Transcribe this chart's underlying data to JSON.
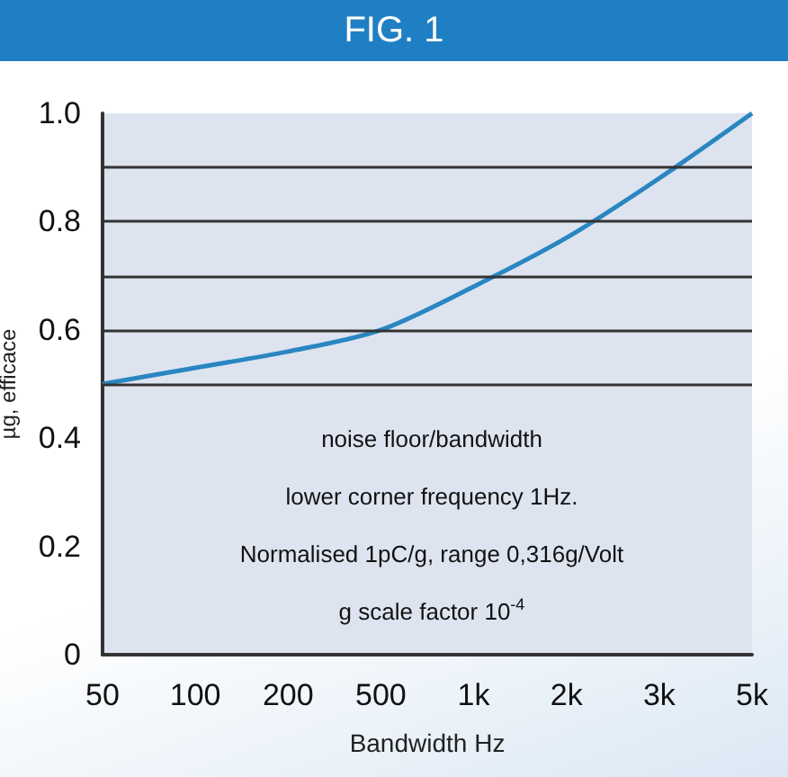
{
  "chart_data": {
    "type": "line",
    "title": "FIG. 1",
    "xlabel": "Bandwidth Hz",
    "ylabel": "µg, efficace",
    "categories": [
      "50",
      "100",
      "200",
      "500",
      "1k",
      "2k",
      "3k",
      "5k"
    ],
    "series": [
      {
        "color": "#2a86c0",
        "values": [
          0.5,
          0.53,
          0.56,
          0.6,
          0.68,
          0.77,
          0.88,
          1.0
        ]
      }
    ],
    "ylim": [
      0,
      1.0
    ],
    "yticks": [
      0,
      0.2,
      0.4,
      0.6,
      0.8,
      {
        "value": 1,
        "label": "1.0"
      }
    ],
    "grid": false,
    "marker": "none",
    "line_style": "solid",
    "ref_lines": [
      {
        "axis": "y",
        "value": 0.5,
        "color": "#333333"
      },
      {
        "axis": "y",
        "value": 0.6,
        "color": "#333333"
      },
      {
        "axis": "y",
        "value": 0.7,
        "color": "#333333"
      },
      {
        "axis": "y",
        "value": 0.8,
        "color": "#333333"
      },
      {
        "axis": "y",
        "value": 0.9,
        "color": "#333333"
      }
    ],
    "annotations": [
      "noise floor/bandwidth",
      "lower corner frequency 1Hz.",
      "Normalised 1pC/g, range 0,316g/Volt",
      "g scale factor 10$^{-4}$"
    ]
  }
}
